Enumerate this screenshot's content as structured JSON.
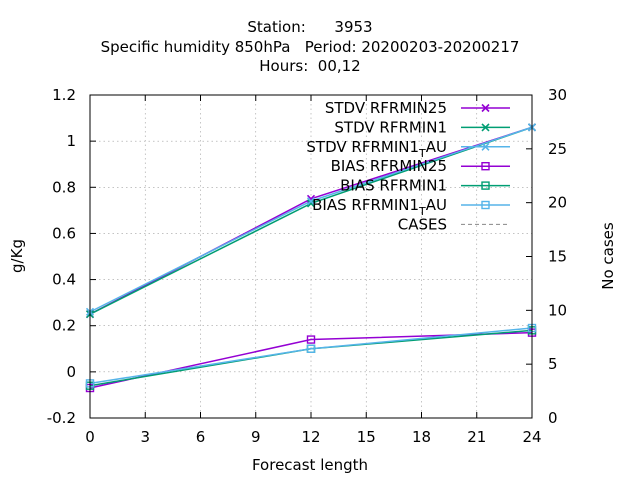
{
  "chart_data": {
    "type": "line",
    "title_lines": [
      "Station:      3953",
      "Specific humidity 850hPa   Period: 20200203-20200217",
      "Hours:  00,12"
    ],
    "xlabel": "Forecast length",
    "ylabel": "g/Kg",
    "y2label": "No cases",
    "xlim": [
      0,
      24
    ],
    "ylim": [
      -0.2,
      1.2
    ],
    "y2lim": [
      0,
      30
    ],
    "xticks": [
      0,
      3,
      6,
      9,
      12,
      15,
      18,
      21,
      24
    ],
    "yticks": [
      -0.2,
      0,
      0.2,
      0.4,
      0.6,
      0.8,
      1,
      1.2
    ],
    "y2ticks": [
      0,
      5,
      10,
      15,
      20,
      25,
      30
    ],
    "grid": true,
    "legend_position": "top-right",
    "series": [
      {
        "name": "STDV RFRMIN25",
        "color": "#9400d3",
        "marker": "x",
        "x": [
          0,
          12,
          24
        ],
        "values": [
          0.25,
          0.75,
          1.06
        ]
      },
      {
        "name": "STDV RFRMIN1",
        "color": "#009e73",
        "marker": "x",
        "x": [
          0,
          12,
          24
        ],
        "values": [
          0.25,
          0.73,
          1.06
        ]
      },
      {
        "name": "STDV RFRMIN1_TAU",
        "color": "#56b4e9",
        "marker": "x",
        "x": [
          0,
          12,
          24
        ],
        "values": [
          0.26,
          0.74,
          1.06
        ]
      },
      {
        "name": "BIAS RFRMIN25",
        "color": "#9400d3",
        "marker": "square",
        "x": [
          0,
          12,
          24
        ],
        "values": [
          -0.07,
          0.14,
          0.17
        ]
      },
      {
        "name": "BIAS RFRMIN1",
        "color": "#009e73",
        "marker": "square",
        "x": [
          0,
          12,
          24
        ],
        "values": [
          -0.06,
          0.1,
          0.18
        ]
      },
      {
        "name": "BIAS RFRMIN1_TAU",
        "color": "#56b4e9",
        "marker": "square",
        "x": [
          0,
          12,
          24
        ],
        "values": [
          -0.05,
          0.1,
          0.19
        ]
      },
      {
        "name": "CASES",
        "color": "#888888",
        "marker": "none",
        "dashed": true,
        "axis": "y2",
        "x": [
          0,
          12,
          24
        ],
        "values": [
          30,
          30,
          30
        ]
      }
    ],
    "legend": [
      {
        "text": "STDV RFRMIN25",
        "sub": ""
      },
      {
        "text": "STDV RFRMIN1",
        "sub": ""
      },
      {
        "text": "STDV RFRMIN1",
        "sub": "T",
        "suffix": "AU"
      },
      {
        "text": "BIAS RFRMIN25",
        "sub": ""
      },
      {
        "text": "BIAS RFRMIN1",
        "sub": ""
      },
      {
        "text": "BIAS RFRMIN1",
        "sub": "T",
        "suffix": "AU"
      },
      {
        "text": "CASES",
        "sub": ""
      }
    ]
  }
}
